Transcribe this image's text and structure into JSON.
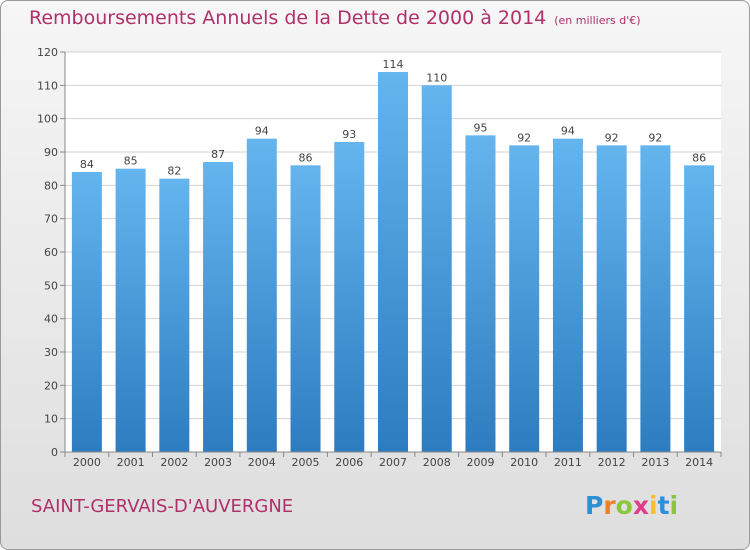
{
  "page": {
    "title": "Remboursements Annuels de la Dette de 2000 à 2014",
    "unit": "(en milliers d'€)",
    "commune": "SAINT-GERVAIS-D'AUVERGNE",
    "logo_letters": [
      "P",
      "r",
      "o",
      "x",
      "i",
      "t",
      "i"
    ],
    "logo_colors": [
      "#2e8fd6",
      "#e8832a",
      "#8cc63f",
      "#e33a8c",
      "#f2c12e",
      "#2e8fd6",
      "#8cc63f"
    ]
  },
  "chart_data": {
    "type": "bar",
    "title": "Remboursements Annuels de la Dette de 2000 à 2014",
    "xlabel": "",
    "ylabel": "",
    "categories": [
      "2000",
      "2001",
      "2002",
      "2003",
      "2004",
      "2005",
      "2006",
      "2007",
      "2008",
      "2009",
      "2010",
      "2011",
      "2012",
      "2013",
      "2014"
    ],
    "values": [
      84,
      85,
      82,
      87,
      94,
      86,
      93,
      114,
      110,
      95,
      92,
      94,
      92,
      92,
      86
    ],
    "data_labels": [
      "84",
      "85",
      "82",
      "87",
      "94",
      "86",
      "93",
      "114",
      "110",
      "95",
      "92",
      "94",
      "92",
      "92",
      "86"
    ],
    "ylim": [
      0,
      120
    ],
    "yticks": [
      0,
      10,
      20,
      30,
      40,
      50,
      60,
      70,
      80,
      90,
      100,
      110,
      120
    ],
    "grid": true,
    "legend": "none",
    "bar_color_top": "#64b5ee",
    "bar_color_bottom": "#2d7cc0"
  }
}
